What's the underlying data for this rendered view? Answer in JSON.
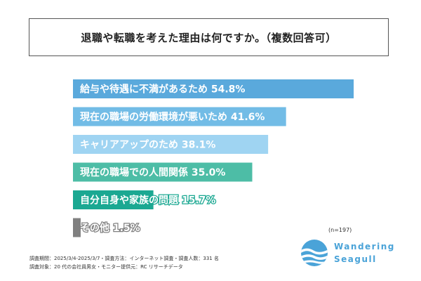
{
  "title": "退職や転職を考えた理由は何ですか。（複数回答可）",
  "chart_data": {
    "type": "bar",
    "orientation": "horizontal",
    "categories": [
      "給与や待遇に不満があるため",
      "現在の職場の労働環境が悪いため",
      "キャリアアップのため",
      "現在の職場での人間関係",
      "自分自身や家族の問題",
      "その他"
    ],
    "values": [
      54.8,
      41.6,
      38.1,
      35.0,
      15.7,
      1.5
    ],
    "value_labels": [
      "54.8%",
      "41.6%",
      "38.1%",
      "35.0%",
      "15.7%",
      "1.5%"
    ],
    "colors": [
      "#5aa9dc",
      "#72bce6",
      "#9fd4f2",
      "#4dbda6",
      "#1ba892",
      "#808080"
    ],
    "unit": "%",
    "xlim": [
      0,
      100
    ],
    "grid": false,
    "legend": "none"
  },
  "sample_note": "(n=197)",
  "notes": {
    "line1": "調査期間：2025/3/4-2025/3/7・調査方法：インターネット調査・調査人数：331 名",
    "line2": "調査対象：20 代の会社員男女・モニター提供元：RC リサーチデータ"
  },
  "logo": {
    "line1": "Wandering",
    "line2": "Seagull",
    "icon": "seagull-wave-icon",
    "color": "#4aa3d8"
  }
}
